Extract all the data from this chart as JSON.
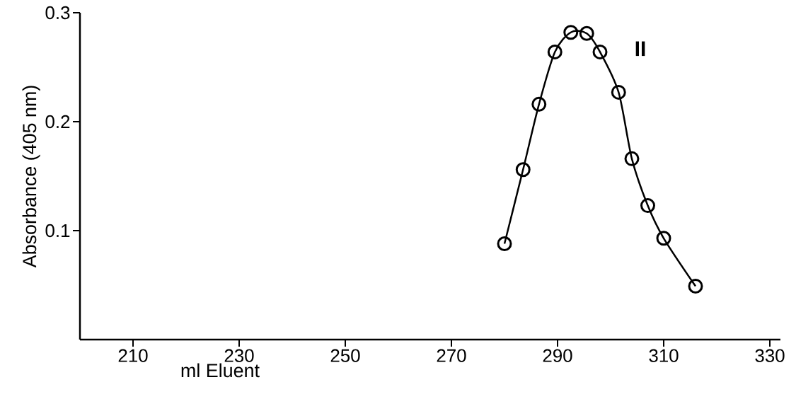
{
  "chart_data": {
    "type": "line",
    "xlabel": "ml Eluent",
    "ylabel": "Absorbance (405 nm)",
    "x": [
      280,
      283.5,
      286.5,
      289.5,
      292.5,
      295.5,
      298,
      301.5,
      304,
      307,
      310,
      316
    ],
    "values": [
      0.088,
      0.156,
      0.216,
      0.264,
      0.282,
      0.281,
      0.264,
      0.227,
      0.166,
      0.123,
      0.093,
      0.049
    ],
    "color": "#000000",
    "marker": "circle",
    "line_style": "solid",
    "xlim": [
      200,
      332
    ],
    "xticks": [
      210,
      230,
      250,
      270,
      290,
      310,
      330
    ],
    "ylim": [
      0,
      0.3
    ],
    "yticks": [
      0.1,
      0.2,
      0.3
    ],
    "grid": false,
    "annotations": [
      "II"
    ]
  }
}
